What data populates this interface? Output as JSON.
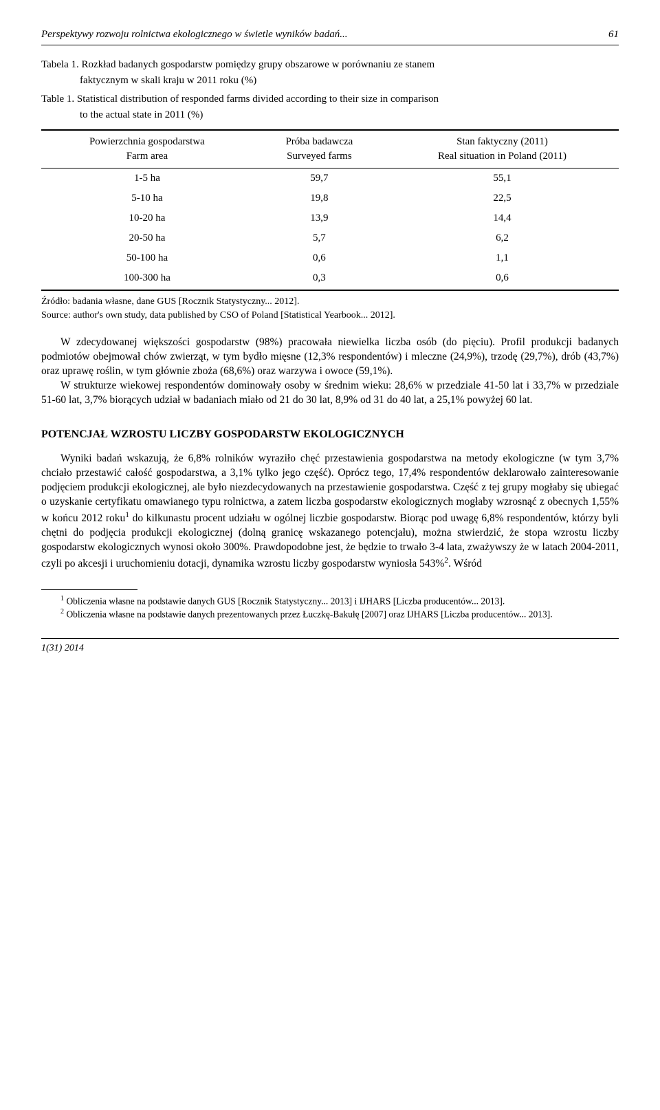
{
  "header": {
    "running_title": "Perspektywy rozwoju rolnictwa ekologicznego w świetle wyników badań...",
    "page_number": "61"
  },
  "table_caption": {
    "label_pl": "Tabela 1.",
    "text_pl": "Rozkład badanych gospodarstw pomiędzy grupy obszarowe w porównaniu ze stanem",
    "text_pl_line2": "faktycznym w skali kraju w 2011 roku (%)",
    "label_en": "Table 1.",
    "text_en": "Statistical distribution of responded farms divided according to their size in comparison",
    "text_en_line2": "to the actual state in 2011 (%)"
  },
  "table": {
    "headers": {
      "col1_line1": "Powierzchnia gospodarstwa",
      "col1_line2": "Farm area",
      "col2_line1": "Próba badawcza",
      "col2_line2": "Surveyed farms",
      "col3_line1": "Stan faktyczny (2011)",
      "col3_line2": "Real situation in Poland (2011)"
    },
    "rows": [
      {
        "range": "1-5 ha",
        "survey": "59,7",
        "actual": "55,1"
      },
      {
        "range": "5-10 ha",
        "survey": "19,8",
        "actual": "22,5"
      },
      {
        "range": "10-20 ha",
        "survey": "13,9",
        "actual": "14,4"
      },
      {
        "range": "20-50 ha",
        "survey": "5,7",
        "actual": "6,2"
      },
      {
        "range": "50-100 ha",
        "survey": "0,6",
        "actual": "1,1"
      },
      {
        "range": "100-300 ha",
        "survey": "0,3",
        "actual": "0,6"
      }
    ]
  },
  "source": {
    "line1": "Źródło: badania własne, dane GUS [Rocznik Statystyczny... 2012].",
    "line2": "Source: author's own study, data published by CSO of Poland [Statistical Yearbook... 2012]."
  },
  "para1": "W zdecydowanej większości gospodarstw (98%) pracowała niewielka liczba osób (do pięciu). Profil produkcji badanych podmiotów obejmował chów zwierząt, w tym bydło mięsne (12,3% respondentów) i mleczne (24,9%), trzodę (29,7%), drób (43,7%) oraz uprawę roślin, w tym głównie zboża (68,6%) oraz warzywa i owoce (59,1%).",
  "para2": "W strukturze wiekowej respondentów dominowały osoby w średnim wieku: 28,6% w przedziale 41-50 lat i 33,7% w przedziale 51-60 lat, 3,7% biorących udział w badaniach miało od 21 do 30 lat, 8,9% od 31 do 40 lat, a 25,1% powyżej 60 lat.",
  "section_heading": "POTENCJAŁ WZROSTU LICZBY GOSPODARSTW EKOLOGICZNYCH",
  "para3a": "Wyniki badań wskazują, że 6,8% rolników wyraziło chęć przestawienia gospodarstwa na metody ekologiczne (w tym 3,7% chciało przestawić całość gospodarstwa, a 3,1% tylko jego część). Oprócz tego, 17,4% respondentów deklarowało zainteresowanie podjęciem produkcji ekologicznej, ale było niezdecydowanych na przestawienie gospodarstwa. Część z tej grupy mogłaby się ubiegać o uzyskanie certyfikatu omawianego typu rolnictwa, a zatem liczba gospodarstw ekologicznych mogłaby wzrosnąć z obecnych 1,55% w końcu 2012 roku",
  "para3b": " do kilkunastu procent udziału w ogólnej liczbie gospodarstw. Biorąc pod uwagę 6,8% respondentów, którzy byli chętni do podjęcia produkcji ekologicznej (dolną granicę wskazanego potencjału), można stwierdzić, że stopa wzrostu liczby gospodarstw ekologicznych wynosi około 300%. Prawdopodobne jest, że będzie to trwało 3-4 lata, zważywszy że w latach 2004-2011, czyli po akcesji i uruchomieniu dotacji, dynamika wzrostu liczby gospodarstw wyniosła 543%",
  "para3c": ". Wśród",
  "footnote1a": " Obliczenia własne na podstawie danych GUS [Rocznik Statystyczny... 2013] i IJHARS [Liczba producentów... 2013].",
  "footnote2a": " Obliczenia własne na podstawie danych prezentowanych przez Łuczkę-Bakułę [2007] oraz IJHARS [Liczba producentów... 2013].",
  "footer": "1(31) 2014"
}
